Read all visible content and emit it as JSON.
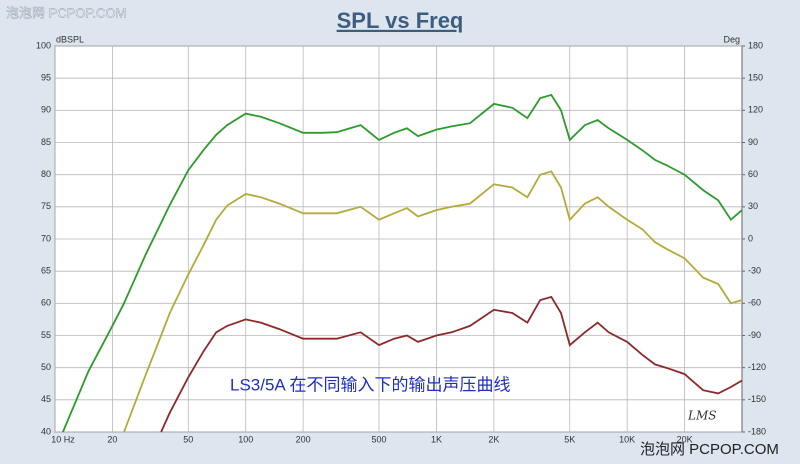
{
  "chart_data": {
    "type": "line",
    "title": "SPL vs Freq",
    "ylabel": "dBSPL",
    "y2label": "Deg",
    "annotation": "LS3/5A  在不同输入下的输出声压曲线",
    "signature": "LMS",
    "watermarks": [
      "泡泡网  PCPOP.COM",
      "泡泡网  PCPOP.COM"
    ],
    "log_x": true,
    "grid": true,
    "x": [
      11,
      15,
      20,
      23,
      30,
      36,
      40,
      50,
      60,
      70,
      80,
      100,
      120,
      150,
      200,
      250,
      300,
      400,
      500,
      600,
      700,
      800,
      1000,
      1200,
      1500,
      2000,
      2500,
      3000,
      3500,
      4000,
      4500,
      5000,
      6000,
      7000,
      8000,
      10000,
      12000,
      14000,
      16000,
      20000,
      25000,
      30000,
      35000,
      40000
    ],
    "series": [
      {
        "color": "#2e9a2e",
        "values": [
          40,
          49.5,
          56.5,
          60,
          67.7,
          72.5,
          75.3,
          80.7,
          83.8,
          86.2,
          87.7,
          89.5,
          89,
          88,
          86.5,
          86.5,
          86.6,
          87.7,
          85.4,
          86.5,
          87.2,
          86,
          87,
          87.5,
          88,
          91,
          90.4,
          88.8,
          91.9,
          92.4,
          90,
          85.4,
          87.7,
          88.5,
          87.2,
          85.4,
          83.8,
          82.3,
          81.5,
          80,
          77.6,
          76,
          73,
          74.5
        ]
      },
      {
        "color": "#b3aa3a",
        "values": [
          null,
          null,
          null,
          40,
          49,
          55,
          58.5,
          64.5,
          69,
          73,
          75.2,
          77,
          76.5,
          75.5,
          74,
          74,
          74,
          75,
          73,
          74,
          74.8,
          73.5,
          74.5,
          75,
          75.5,
          78.5,
          78,
          76.5,
          80,
          80.5,
          78,
          73,
          75.5,
          76.5,
          75,
          73,
          71.5,
          69.5,
          68.5,
          67,
          64,
          63,
          60,
          60.5
        ]
      },
      {
        "color": "#8b2a2a",
        "values": [
          null,
          null,
          null,
          null,
          null,
          40,
          43,
          48.5,
          52.5,
          55.5,
          56.5,
          57.5,
          57,
          56,
          54.5,
          54.5,
          54.5,
          55.5,
          53.5,
          54.5,
          55,
          54,
          55,
          55.5,
          56.5,
          59,
          58.5,
          57,
          60.5,
          61,
          58.5,
          53.5,
          55.5,
          57,
          55.5,
          54,
          52,
          50.5,
          50,
          49,
          46.5,
          46,
          47,
          48
        ]
      }
    ],
    "xlim": [
      10,
      40000
    ],
    "xticks": [
      {
        "value": 10,
        "label": "10 Hz"
      },
      20,
      50,
      100,
      200,
      500,
      {
        "value": 1000,
        "label": "1K"
      },
      {
        "value": 2000,
        "label": "2K"
      },
      {
        "value": 5000,
        "label": "5K"
      },
      {
        "value": 10000,
        "label": "10K"
      },
      {
        "value": 20000,
        "label": "20K"
      }
    ],
    "ylim": [
      40,
      100
    ],
    "yticks": [
      40,
      45,
      50,
      55,
      60,
      65,
      70,
      75,
      80,
      85,
      90,
      95,
      100
    ],
    "y2lim": [
      -180,
      180
    ],
    "y2ticks": [
      -180,
      -150,
      -120,
      -90,
      -60,
      -30,
      0,
      30,
      60,
      90,
      120,
      150,
      180
    ]
  }
}
